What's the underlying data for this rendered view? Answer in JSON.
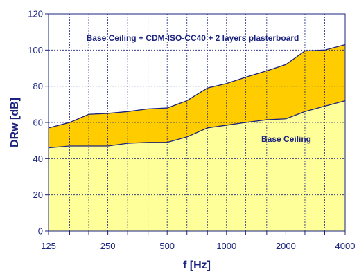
{
  "chart_data": {
    "type": "area",
    "xlabel": "f [Hz]",
    "ylabel": "DRw [dB]",
    "x_scale": "log",
    "x_ticks": [
      125,
      250,
      500,
      1000,
      2000,
      4000
    ],
    "x_tick_labels": [
      "125",
      "250",
      "500",
      "1000",
      "2000",
      "4000"
    ],
    "x_frequencies": [
      125,
      160,
      200,
      250,
      315,
      400,
      500,
      630,
      800,
      1000,
      1250,
      1600,
      2000,
      2500,
      3150,
      4000
    ],
    "ylim": [
      0,
      120
    ],
    "y_ticks": [
      0,
      20,
      40,
      60,
      80,
      100,
      120
    ],
    "y_tick_labels": [
      "0",
      "20",
      "40",
      "60",
      "80",
      "100",
      "120"
    ],
    "grid": true,
    "series": [
      {
        "name": "Base Ceiling",
        "color": "#ffff99",
        "line_color": "#1a237e",
        "values": [
          46,
          47,
          47,
          47,
          48.5,
          49,
          49,
          52,
          57,
          58.5,
          60,
          61.5,
          62,
          66,
          69,
          72
        ]
      },
      {
        "name": "Base Ceiling + CDM-ISO-CC40 + 2 layers plasterboard",
        "color": "#ffcc00",
        "line_color": "#1a237e",
        "values": [
          57,
          60,
          64.5,
          65,
          66,
          67.5,
          68,
          72,
          79,
          81.5,
          85,
          88.5,
          92,
          99.5,
          100,
          103
        ]
      }
    ]
  }
}
